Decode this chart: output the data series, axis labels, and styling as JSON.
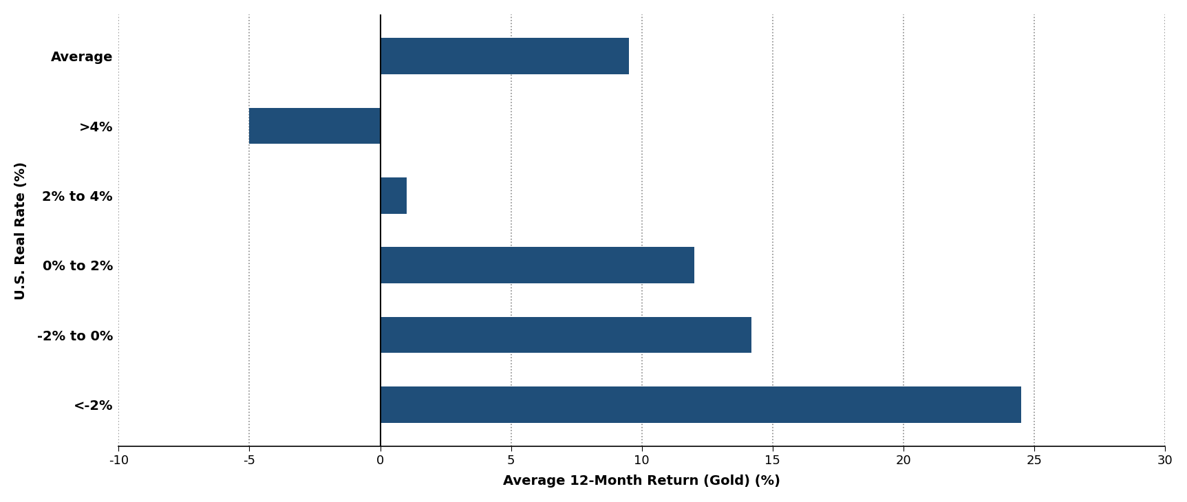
{
  "categories": [
    "<-2%",
    "-2% to 0%",
    "0% to 2%",
    "2% to 4%",
    ">4%",
    "Average"
  ],
  "values": [
    24.5,
    14.2,
    12.0,
    1.0,
    -5.0,
    9.5
  ],
  "bar_color": "#1F4E79",
  "xlabel": "Average 12-Month Return (Gold) (%)",
  "ylabel": "U.S. Real Rate (%)",
  "xlim": [
    -10,
    30
  ],
  "xticks": [
    -10,
    -5,
    0,
    5,
    10,
    15,
    20,
    25,
    30
  ],
  "grid_color": "#888888",
  "background_color": "#ffffff",
  "bar_height": 0.52,
  "xlabel_fontsize": 14,
  "ylabel_fontsize": 14,
  "tick_fontsize": 13,
  "ytick_fontsize": 14
}
